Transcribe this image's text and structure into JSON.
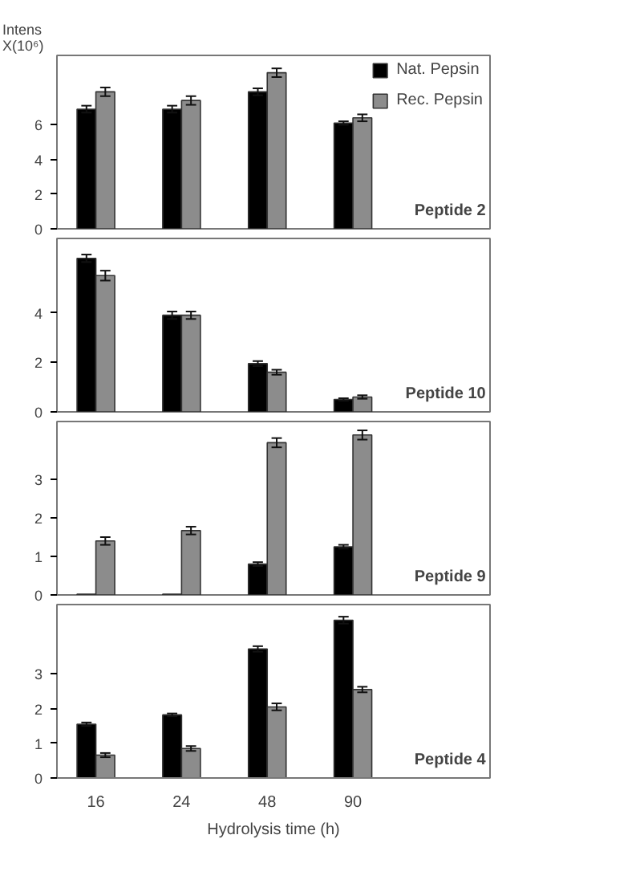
{
  "chart_data": [
    {
      "type": "bar",
      "ylabel": "Intens X(10⁶)",
      "categories": [
        "16",
        "24",
        "48",
        "90"
      ],
      "ylim": [
        0,
        10
      ],
      "yticks": [
        0,
        2,
        4,
        6
      ],
      "tick_labels": "y",
      "legend": "top right",
      "grid": false,
      "annotations": [
        "Peptide 2"
      ],
      "series": [
        {
          "name": "Nat. Pepsin",
          "color": "#000000",
          "values": [
            6.9,
            6.9,
            7.9,
            6.1
          ],
          "errors": [
            0.2,
            0.2,
            0.2,
            0.1
          ]
        },
        {
          "name": "Rec. Pepsin",
          "color": "#8c8c8c",
          "values": [
            7.9,
            7.4,
            9.0,
            6.4
          ],
          "errors": [
            0.25,
            0.25,
            0.25,
            0.2
          ]
        }
      ]
    },
    {
      "type": "bar",
      "categories": [
        "16",
        "24",
        "48",
        "90"
      ],
      "ylim": [
        0,
        7
      ],
      "yticks": [
        0,
        2,
        4
      ],
      "tick_labels": "y",
      "grid": false,
      "annotations": [
        "Peptide 10"
      ],
      "series": [
        {
          "color": "#000000",
          "values": [
            6.2,
            3.9,
            1.95,
            0.5
          ],
          "errors": [
            0.15,
            0.15,
            0.1,
            0.05
          ]
        },
        {
          "color": "#8c8c8c",
          "values": [
            5.5,
            3.9,
            1.6,
            0.6
          ],
          "errors": [
            0.2,
            0.15,
            0.1,
            0.07
          ]
        }
      ]
    },
    {
      "type": "bar",
      "categories": [
        "16",
        "24",
        "48",
        "90"
      ],
      "ylim": [
        0,
        4.5
      ],
      "yticks": [
        0,
        1,
        2,
        3
      ],
      "tick_labels": "y",
      "grid": false,
      "annotations": [
        "Peptide 9"
      ],
      "series": [
        {
          "color": "#000000",
          "values": [
            0.02,
            0.02,
            0.8,
            1.25
          ],
          "errors": [
            null,
            null,
            0.05,
            0.05
          ]
        },
        {
          "color": "#8c8c8c",
          "values": [
            1.4,
            1.67,
            3.95,
            4.15
          ],
          "errors": [
            0.1,
            0.1,
            0.12,
            0.12
          ]
        }
      ]
    },
    {
      "type": "bar",
      "categories": [
        "16",
        "24",
        "48",
        "90"
      ],
      "ylim": [
        0,
        5
      ],
      "yticks": [
        0,
        1,
        2,
        3
      ],
      "grid": false,
      "xlabel": "Hydrolysis time (h)",
      "annotations": [
        "Peptide 4"
      ],
      "series": [
        {
          "color": "#000000",
          "values": [
            1.55,
            1.82,
            3.72,
            4.55
          ],
          "errors": [
            0.05,
            0.04,
            0.08,
            0.1
          ]
        },
        {
          "color": "#8c8c8c",
          "values": [
            0.66,
            0.85,
            2.05,
            2.55
          ],
          "errors": [
            0.06,
            0.07,
            0.1,
            0.08
          ]
        }
      ]
    }
  ]
}
